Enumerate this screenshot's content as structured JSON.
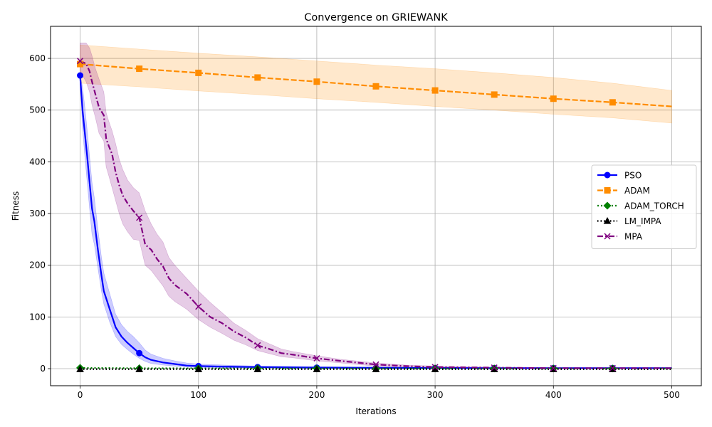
{
  "chart_data": {
    "type": "line",
    "title": "Convergence on GRIEWANK",
    "xlabel": "Iterations",
    "ylabel": "Fitness",
    "xlim": [
      -25,
      525
    ],
    "ylim": [
      -33,
      662
    ],
    "xticks": [
      0,
      100,
      200,
      300,
      400,
      500
    ],
    "yticks": [
      0,
      100,
      200,
      300,
      400,
      500,
      600
    ],
    "grid": true,
    "legend_position": "center-right",
    "series": [
      {
        "name": "PSO",
        "color": "#0000ff",
        "line_style": "solid",
        "marker": "circle",
        "markers_at": [
          0,
          50,
          100,
          150,
          200,
          250,
          300,
          350,
          400,
          450
        ],
        "x": [
          0,
          2,
          4,
          6,
          8,
          10,
          12,
          15,
          18,
          20,
          25,
          30,
          35,
          40,
          45,
          50,
          55,
          60,
          70,
          80,
          90,
          100,
          120,
          150,
          200,
          250,
          300,
          350,
          400,
          450,
          500
        ],
        "y": [
          567,
          500,
          455,
          410,
          360,
          310,
          285,
          230,
          180,
          150,
          115,
          80,
          62,
          50,
          40,
          30,
          22,
          17,
          12,
          9,
          6,
          5,
          4,
          3,
          2,
          1.5,
          1.2,
          1,
          1,
          1,
          1
        ],
        "band_upper": [
          570,
          545,
          505,
          460,
          410,
          360,
          330,
          270,
          215,
          185,
          145,
          105,
          85,
          72,
          62,
          50,
          36,
          28,
          20,
          15,
          11,
          9,
          7,
          5,
          4,
          3,
          2.5,
          2,
          2,
          2,
          2
        ],
        "band_lower": [
          560,
          465,
          410,
          360,
          310,
          260,
          240,
          195,
          150,
          125,
          90,
          62,
          47,
          37,
          28,
          20,
          14,
          10,
          7,
          5,
          3,
          2.5,
          2,
          1.5,
          1,
          0.8,
          0.6,
          0.5,
          0.5,
          0.5,
          0.5
        ]
      },
      {
        "name": "ADAM",
        "color": "#ff8c00",
        "line_style": "dashed",
        "marker": "square",
        "markers_at": [
          0,
          50,
          100,
          150,
          200,
          250,
          300,
          350,
          400,
          450
        ],
        "x": [
          0,
          50,
          100,
          150,
          200,
          250,
          300,
          350,
          400,
          450,
          500
        ],
        "y": [
          589,
          580,
          572,
          563,
          555,
          546,
          538,
          530,
          522,
          515,
          507
        ],
        "band_upper": [
          626,
          618,
          610,
          603,
          595,
          587,
          580,
          572,
          563,
          552,
          538
        ],
        "band_lower": [
          552,
          545,
          537,
          530,
          522,
          515,
          507,
          500,
          492,
          485,
          475
        ]
      },
      {
        "name": "ADAM_TORCH",
        "color": "#008000",
        "line_style": "dotted",
        "marker": "diamond",
        "markers_at": [
          0,
          50,
          100,
          150,
          200,
          250,
          300,
          350,
          400,
          450
        ],
        "x": [
          0,
          50,
          100,
          150,
          200,
          250,
          300,
          350,
          400,
          450,
          500
        ],
        "y": [
          1.5,
          0.8,
          0.6,
          0.5,
          0.4,
          0.4,
          0.3,
          0.3,
          0.3,
          0.3,
          0.3
        ]
      },
      {
        "name": "LM_IMPA",
        "color": "#000000",
        "line_style": "dotted-heavy",
        "marker": "triangle",
        "markers_at": [
          0,
          50,
          100,
          150,
          200,
          250,
          300,
          350,
          400,
          450
        ],
        "x": [
          0,
          50,
          100,
          150,
          200,
          250,
          300,
          350,
          400,
          450,
          500
        ],
        "y": [
          -1,
          -1,
          -1,
          -1,
          -1,
          -1,
          -1,
          -1,
          -1,
          -1,
          -1
        ]
      },
      {
        "name": "MPA",
        "color": "#800080",
        "line_style": "dashdot",
        "marker": "x",
        "markers_at": [
          0,
          50,
          100,
          150,
          200,
          250,
          300,
          350,
          400,
          450
        ],
        "x": [
          0,
          5,
          8,
          10,
          13,
          16,
          20,
          22,
          24,
          27,
          30,
          33,
          36,
          40,
          45,
          50,
          55,
          60,
          65,
          70,
          75,
          80,
          90,
          100,
          110,
          120,
          130,
          140,
          150,
          160,
          170,
          180,
          200,
          220,
          250,
          275,
          300,
          350,
          400,
          450,
          500
        ],
        "y": [
          595,
          590,
          575,
          555,
          530,
          505,
          490,
          445,
          432,
          415,
          380,
          355,
          335,
          320,
          305,
          292,
          240,
          230,
          212,
          198,
          175,
          162,
          145,
          120,
          100,
          88,
          72,
          60,
          45,
          38,
          30,
          27,
          20,
          15,
          8,
          5,
          3,
          2,
          1,
          1,
          1
        ],
        "band_upper": [
          630,
          630,
          620,
          605,
          580,
          560,
          535,
          495,
          480,
          460,
          435,
          405,
          385,
          365,
          350,
          340,
          305,
          280,
          260,
          245,
          215,
          200,
          175,
          150,
          128,
          108,
          88,
          74,
          58,
          48,
          38,
          33,
          25,
          18,
          11,
          7,
          5,
          3,
          2,
          2,
          2
        ],
        "band_lower": [
          575,
          555,
          535,
          510,
          485,
          455,
          440,
          390,
          375,
          350,
          325,
          300,
          280,
          265,
          250,
          248,
          200,
          190,
          175,
          160,
          140,
          130,
          115,
          95,
          80,
          68,
          55,
          46,
          35,
          29,
          23,
          21,
          15,
          11,
          5,
          3,
          1.5,
          1,
          0.5,
          0.5,
          0.5
        ]
      }
    ]
  }
}
